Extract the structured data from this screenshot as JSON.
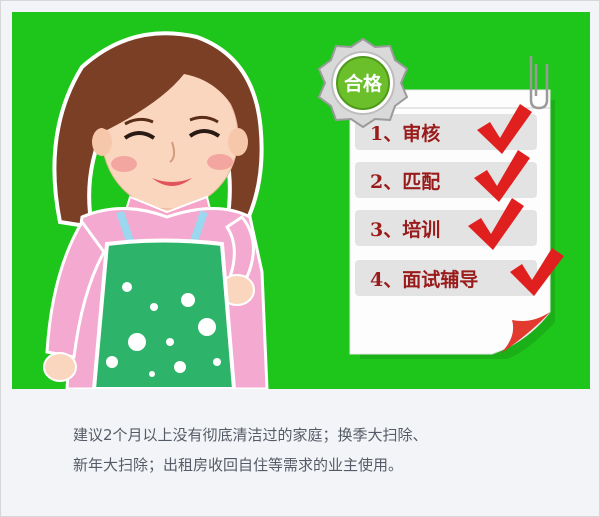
{
  "badge": {
    "label": "合格",
    "color": "#6abf2a"
  },
  "steps": [
    {
      "label": "1、审核",
      "checked": true
    },
    {
      "label": "2、匹配",
      "checked": true
    },
    {
      "label": "3、培训",
      "checked": true
    },
    {
      "label": "4、面试辅导",
      "checked": true
    }
  ],
  "caption": {
    "line1": "建议2个月以上没有彻底清洁过的家庭；换季大扫除、",
    "line2": "新年大扫除；出租房收回自住等需求的业主使用。"
  },
  "colors": {
    "background": "#1ec51a",
    "check": "#e0201f",
    "text": "#9a1b1b"
  },
  "illustration": {
    "icon": "housekeeper-woman-illustration"
  }
}
